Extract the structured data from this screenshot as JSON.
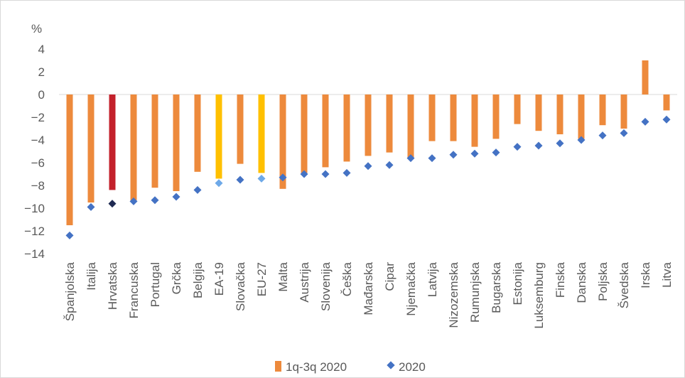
{
  "chart_data": {
    "type": "bar",
    "unit_label": "%",
    "ylim": [
      -14,
      4
    ],
    "yticks": [
      4,
      2,
      0,
      -2,
      -4,
      -6,
      -8,
      -10,
      -12,
      -14
    ],
    "grid": false,
    "legend_position": "bottom",
    "categories": [
      "Španjolska",
      "Italija",
      "Hrvatska",
      "Francuska",
      "Portugal",
      "Grčka",
      "Belgija",
      "EA-19",
      "Slovačka",
      "EU-27",
      "Malta",
      "Austrija",
      "Slovenija",
      "Češka",
      "Mađarska",
      "Cipar",
      "Njemačka",
      "Latvija",
      "Nizozemska",
      "Rumunjska",
      "Bugarska",
      "Estonija",
      "Luksemburg",
      "Finska",
      "Danska",
      "Poljska",
      "Švedska",
      "Irska",
      "Litva"
    ],
    "series": [
      {
        "name": "1q-3q 2020",
        "kind": "bar",
        "color": "#ed8a3c",
        "values": [
          -11.5,
          -9.5,
          -8.4,
          -9.3,
          -8.2,
          -8.5,
          -6.8,
          -7.4,
          -6.1,
          -6.9,
          -8.3,
          -6.9,
          -6.4,
          -5.9,
          -5.4,
          -5.1,
          -5.6,
          -4.1,
          -4.1,
          -4.6,
          -3.9,
          -2.6,
          -3.2,
          -3.5,
          -3.9,
          -2.7,
          -3.0,
          3.0,
          -1.4
        ],
        "highlight_colors": {
          "Hrvatska": "#c3212b",
          "EA-19": "#ffc000",
          "EU-27": "#ffc000"
        }
      },
      {
        "name": "2020",
        "kind": "marker",
        "color": "#4472c4",
        "values": [
          -12.4,
          -9.9,
          -9.6,
          -9.4,
          -9.3,
          -9.0,
          -8.4,
          -7.8,
          -7.5,
          -7.4,
          -7.3,
          -7.0,
          -7.0,
          -6.9,
          -6.3,
          -6.2,
          -5.6,
          -5.6,
          -5.3,
          -5.2,
          -5.1,
          -4.6,
          -4.5,
          -4.3,
          -4.0,
          -3.6,
          -3.4,
          -2.4,
          -2.2
        ],
        "highlight_colors": {
          "Hrvatska": "#1f2a52",
          "EA-19": "#6ea9e8",
          "EU-27": "#6ea9e8"
        }
      }
    ]
  }
}
